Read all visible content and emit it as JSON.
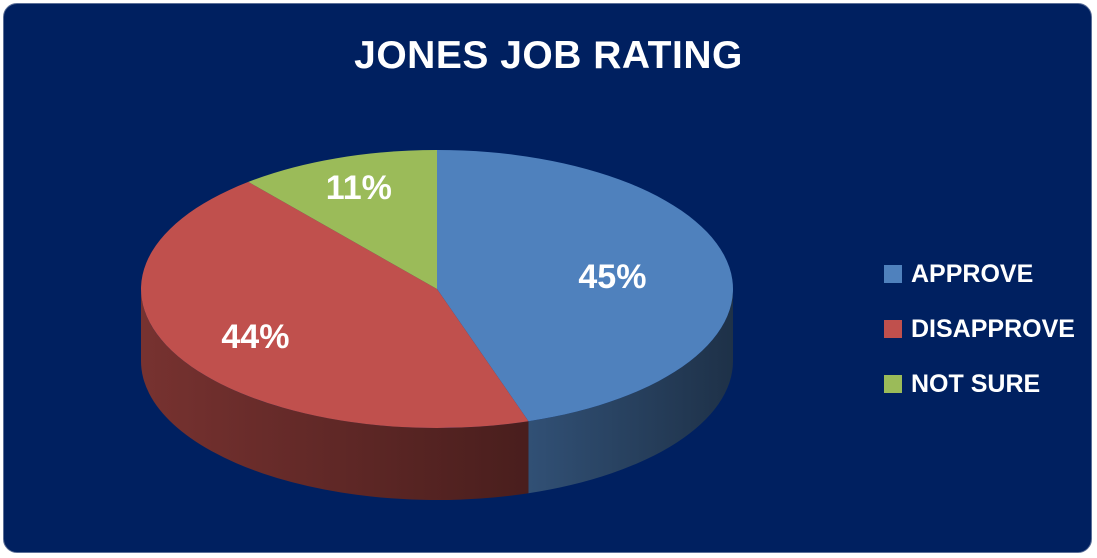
{
  "chart_data": {
    "type": "pie",
    "title": "JONES JOB RATING",
    "categories": [
      "APPROVE",
      "DISAPPROVE",
      "NOT SURE"
    ],
    "values": [
      45,
      44,
      11
    ],
    "data_labels": [
      "45%",
      "44%",
      "11%"
    ],
    "colors": [
      "#4f81bd",
      "#c0504d",
      "#9bbb59"
    ],
    "legend_position": "right",
    "style": "3d"
  }
}
